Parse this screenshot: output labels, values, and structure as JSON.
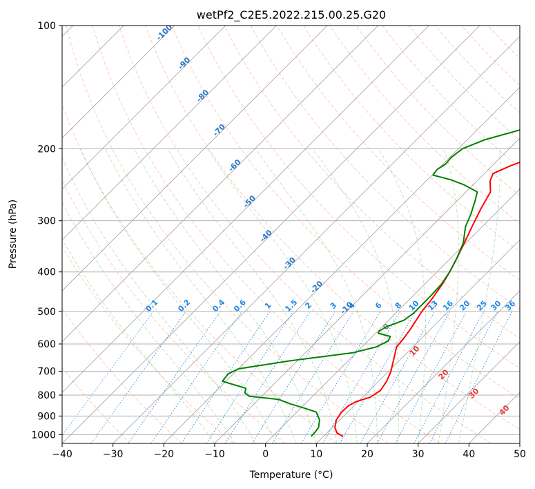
{
  "chart_data": {
    "type": "line",
    "title": "wetPf2_C2E5.2022.215.00.25.G20",
    "xlabel": "Temperature (°C)",
    "ylabel": "Pressure (hPa)",
    "xlim": [
      -40,
      50
    ],
    "ylim": [
      1050,
      100
    ],
    "y_scale": "log",
    "grid": true,
    "x_ticks": [
      "−40",
      "−30",
      "−20",
      "−10",
      "0",
      "10",
      "20",
      "30",
      "40",
      "50"
    ],
    "y_ticks": [
      {
        "value": 1000,
        "label": "1000"
      },
      {
        "value": 900,
        "label": "900"
      },
      {
        "value": 800,
        "label": "800"
      },
      {
        "value": 700,
        "label": "700"
      },
      {
        "value": 600,
        "label": "600"
      },
      {
        "value": 500,
        "label": "500"
      },
      {
        "value": 400,
        "label": "400"
      },
      {
        "value": 300,
        "label": "300"
      },
      {
        "value": 200,
        "label": "200"
      },
      {
        "value": 100,
        "label": "100"
      }
    ],
    "isotherm_labels": [
      {
        "t": -100,
        "label": "-100"
      },
      {
        "t": -90,
        "label": "-90"
      },
      {
        "t": -80,
        "label": "-80"
      },
      {
        "t": -70,
        "label": "-70"
      },
      {
        "t": -60,
        "label": "-60"
      },
      {
        "t": -50,
        "label": "-50"
      },
      {
        "t": -40,
        "label": "-40"
      },
      {
        "t": -30,
        "label": "-30"
      },
      {
        "t": -20,
        "label": "-20"
      },
      {
        "t": -10,
        "label": "-10"
      }
    ],
    "mixing_ratio_labels": [
      {
        "w": 0.1,
        "label": "0.1"
      },
      {
        "w": 0.2,
        "label": "0.2"
      },
      {
        "w": 0.4,
        "label": "0.4"
      },
      {
        "w": 0.6,
        "label": "0.6"
      },
      {
        "w": 1,
        "label": "1"
      },
      {
        "w": 1.5,
        "label": "1.5"
      },
      {
        "w": 2,
        "label": "2"
      },
      {
        "w": 3,
        "label": "3"
      },
      {
        "w": 4,
        "label": "4"
      },
      {
        "w": 6,
        "label": "6"
      },
      {
        "w": 8,
        "label": "8"
      },
      {
        "w": 10,
        "label": "10"
      },
      {
        "w": 13,
        "label": "13"
      },
      {
        "w": 16,
        "label": "16"
      },
      {
        "w": 20,
        "label": "20"
      },
      {
        "w": 25,
        "label": "25"
      },
      {
        "w": 30,
        "label": "30"
      },
      {
        "w": 36,
        "label": "36"
      }
    ],
    "warm_isotherm_labels": [
      {
        "t": 0,
        "label": "0"
      },
      {
        "t": 10,
        "label": "10"
      },
      {
        "t": 20,
        "label": "20"
      },
      {
        "t": 30,
        "label": "30"
      },
      {
        "t": 40,
        "label": "40"
      }
    ],
    "series": [
      {
        "color": "#ff0000",
        "points": [
          [
            1010,
            13.9
          ],
          [
            990,
            12.0
          ],
          [
            960,
            10.5
          ],
          [
            920,
            9.3
          ],
          [
            880,
            8.8
          ],
          [
            850,
            8.9
          ],
          [
            830,
            9.6
          ],
          [
            810,
            11.5
          ],
          [
            780,
            12.2
          ],
          [
            740,
            11.6
          ],
          [
            700,
            10.5
          ],
          [
            650,
            8.5
          ],
          [
            610,
            6.8
          ],
          [
            580,
            6.5
          ],
          [
            550,
            6.0
          ],
          [
            520,
            5.3
          ],
          [
            500,
            4.8
          ],
          [
            470,
            4.4
          ],
          [
            430,
            3.5
          ],
          [
            400,
            2.5
          ],
          [
            370,
            1.2
          ],
          [
            340,
            -0.3
          ],
          [
            310,
            -2.0
          ],
          [
            280,
            -3.8
          ],
          [
            255,
            -5.2
          ],
          [
            240,
            -7.4
          ],
          [
            230,
            -8.3
          ],
          [
            220,
            -6.4
          ],
          [
            205,
            -2.0
          ],
          [
            190,
            3.0
          ],
          [
            175,
            7.5
          ],
          [
            160,
            11.5
          ],
          [
            150,
            12.5
          ],
          [
            135,
            13.5
          ],
          [
            120,
            14.5
          ],
          [
            110,
            17.5
          ],
          [
            100,
            21.0
          ]
        ]
      },
      {
        "color": "#008000",
        "points": [
          [
            1010,
            7.6
          ],
          [
            985,
            7.5
          ],
          [
            960,
            7.3
          ],
          [
            920,
            6.0
          ],
          [
            880,
            3.8
          ],
          [
            860,
            0.5
          ],
          [
            840,
            -3.0
          ],
          [
            820,
            -6.0
          ],
          [
            805,
            -12.5
          ],
          [
            790,
            -14.0
          ],
          [
            770,
            -14.7
          ],
          [
            740,
            -20.7
          ],
          [
            710,
            -21.0
          ],
          [
            690,
            -20.0
          ],
          [
            660,
            -11.5
          ],
          [
            630,
            -0.6
          ],
          [
            610,
            2.8
          ],
          [
            590,
            4.0
          ],
          [
            575,
            3.5
          ],
          [
            565,
            0.5
          ],
          [
            558,
            0.3
          ],
          [
            545,
            0.8
          ],
          [
            525,
            3.0
          ],
          [
            505,
            3.5
          ],
          [
            490,
            3.5
          ],
          [
            460,
            3.5
          ],
          [
            430,
            3.3
          ],
          [
            400,
            2.5
          ],
          [
            370,
            1.2
          ],
          [
            340,
            -0.5
          ],
          [
            310,
            -3.3
          ],
          [
            290,
            -4.6
          ],
          [
            270,
            -6.3
          ],
          [
            255,
            -7.8
          ],
          [
            245,
            -11.8
          ],
          [
            238,
            -15.5
          ],
          [
            232,
            -19.8
          ],
          [
            225,
            -20.1
          ],
          [
            218,
            -19.5
          ],
          [
            210,
            -19.7
          ],
          [
            200,
            -19.2
          ],
          [
            190,
            -16.5
          ],
          [
            180,
            -11.6
          ],
          [
            170,
            -11.8
          ],
          [
            160,
            -12.7
          ],
          [
            150,
            -12.7
          ],
          [
            135,
            -9.5
          ],
          [
            120,
            -4.7
          ],
          [
            110,
            -2.2
          ],
          [
            100,
            0.0
          ]
        ]
      }
    ]
  }
}
